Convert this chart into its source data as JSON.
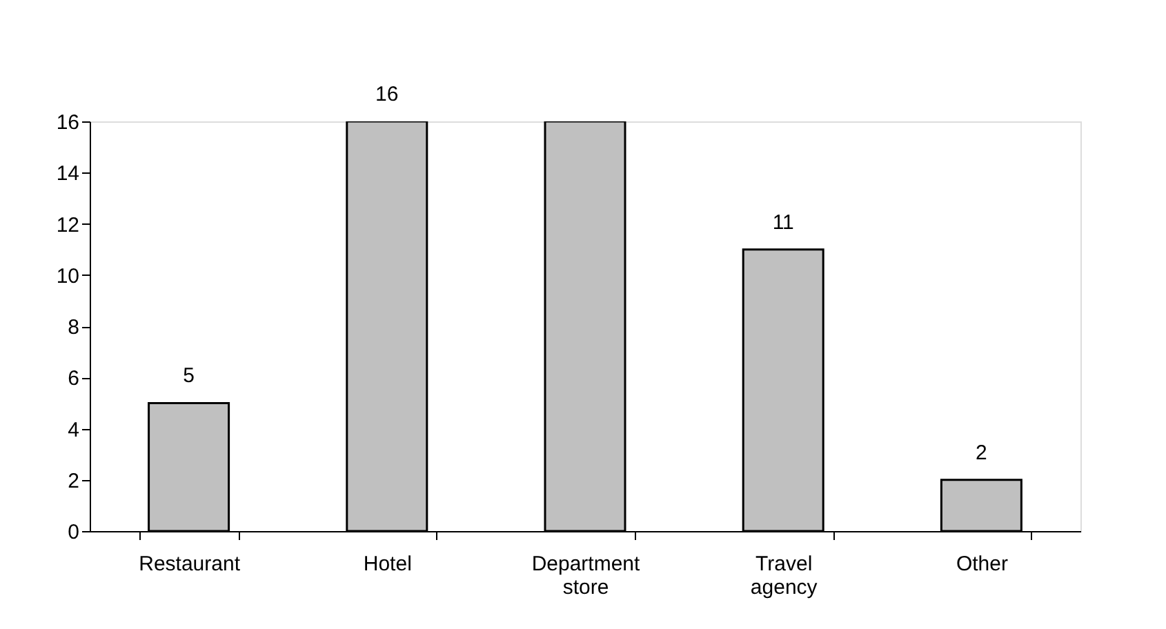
{
  "chart_data": {
    "type": "bar",
    "categories": [
      "Restaurant",
      "Hotel",
      "Department store",
      "Travel agency",
      "Other"
    ],
    "values": [
      5,
      16,
      16,
      11,
      2
    ],
    "value_labels": [
      "5",
      "16",
      null,
      "11",
      "2"
    ],
    "color": "#c0c0c0",
    "ylim": [
      0,
      16
    ],
    "yticks": [
      0,
      2,
      4,
      6,
      8,
      10,
      12,
      14,
      16
    ],
    "grid": false
  }
}
